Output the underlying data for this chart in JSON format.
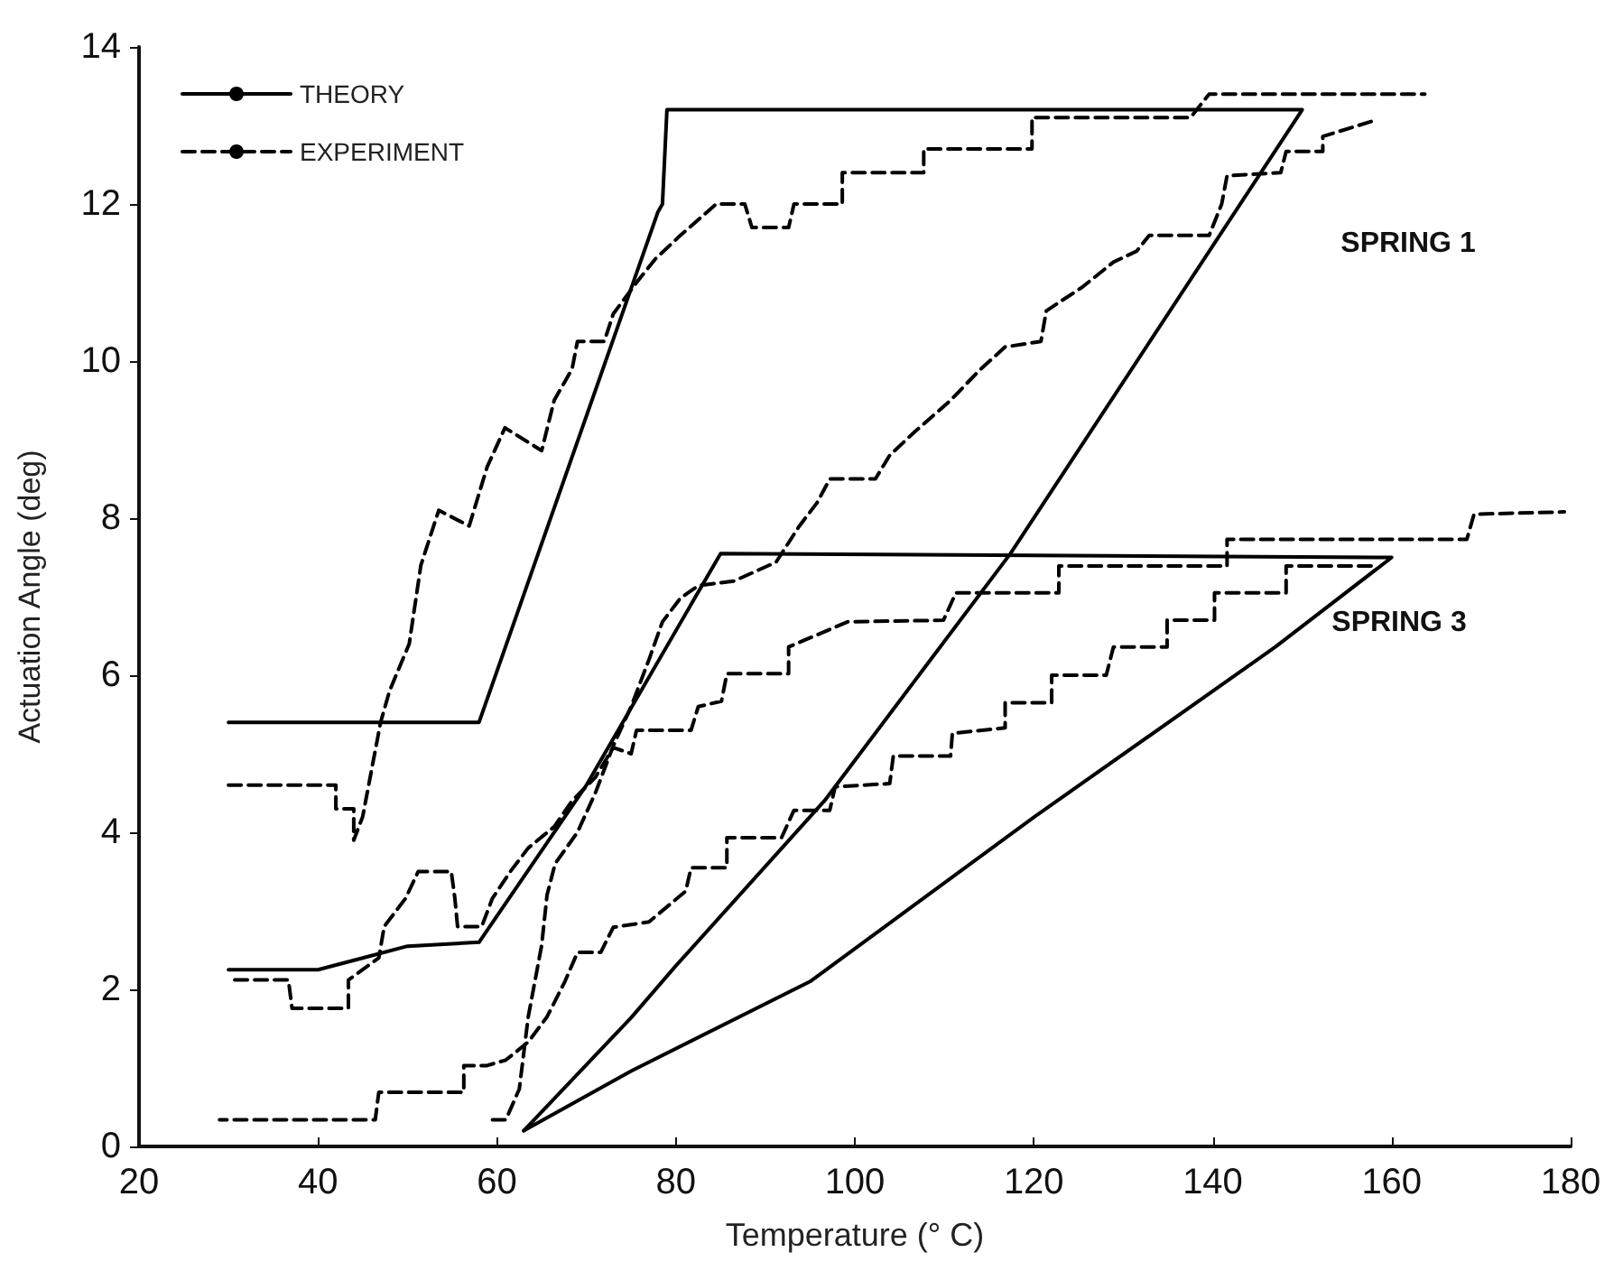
{
  "chart_data": {
    "type": "line",
    "xlabel": "Temperature (° C)",
    "ylabel": "Actuation Angle (deg)",
    "xlim": [
      20,
      180
    ],
    "xticks": [
      20,
      40,
      60,
      80,
      100,
      120,
      140,
      160,
      180
    ],
    "ylim": [
      0,
      14
    ],
    "yticks": [
      0,
      2,
      4,
      6,
      8,
      10,
      12,
      14
    ],
    "grid": false,
    "legend": "top left",
    "marker": "none",
    "annotations": [
      "SPRING 1",
      "SPRING 3"
    ],
    "series": [
      {
        "name": "THEORY",
        "color": "#000000",
        "line_style": "solid",
        "x": [
          30,
          58,
          78,
          78.5,
          79,
          150,
          117.4,
          96.6,
          80,
          75,
          63
        ],
        "values": [
          5.4,
          5.4,
          11.9,
          12.0,
          13.2,
          13.2,
          7.55,
          4.4,
          2.3,
          1.64,
          0.2
        ]
      },
      {
        "color": "#000000",
        "line_style": "solid",
        "x": [
          30,
          40,
          45,
          50,
          58,
          70,
          85,
          160,
          147,
          120,
          95,
          75,
          63
        ],
        "values": [
          2.25,
          2.25,
          2.4,
          2.55,
          2.6,
          4.6,
          7.55,
          7.5,
          6.36,
          4.19,
          2.1,
          0.96,
          0.2
        ]
      },
      {
        "name": "EXPERIMENT",
        "color": "#000000",
        "line_style": "dashed",
        "x": [
          30,
          42,
          42,
          44,
          44,
          45,
          46,
          47,
          48,
          50.2,
          51.5,
          53.5,
          56.9,
          58.9,
          60.9,
          65,
          66.4,
          68.4,
          69,
          72,
          73,
          75.6,
          77.7,
          80.5,
          83,
          84.5,
          87.7,
          88.5,
          92.6,
          93.2,
          98.6,
          98.6,
          107.7,
          107.7,
          119.8,
          119.8,
          137.5,
          139.6,
          163.7
        ],
        "values": [
          4.6,
          4.6,
          4.3,
          4.3,
          3.9,
          4.2,
          4.8,
          5.4,
          5.8,
          6.4,
          7.4,
          8.1,
          7.9,
          8.65,
          9.15,
          8.86,
          9.5,
          9.9,
          10.25,
          10.25,
          10.6,
          11.0,
          11.3,
          11.6,
          11.85,
          12.0,
          12.0,
          11.7,
          11.7,
          12.0,
          12.0,
          12.4,
          12.4,
          12.7,
          12.7,
          13.1,
          13.1,
          13.4,
          13.4
        ]
      },
      {
        "color": "#000000",
        "line_style": "dashed",
        "x": [
          157.7,
          152.3,
          152.3,
          148.2,
          147.6,
          141.6,
          141,
          139.6,
          132.9,
          131.5,
          128.9,
          125.4,
          121.4,
          120.8,
          116.8,
          113.9,
          110.7,
          106.7,
          103.9,
          102.3,
          97.2,
          95.8,
          93.8,
          91.2,
          86.5,
          82.5,
          80.5,
          78.5,
          77,
          75,
          73,
          71,
          69,
          66.5,
          65.6,
          65,
          63.5,
          62.5,
          61,
          59
        ],
        "values": [
          13.05,
          12.86,
          12.67,
          12.67,
          12.4,
          12.36,
          12.0,
          11.6,
          11.6,
          11.4,
          11.26,
          10.94,
          10.64,
          10.25,
          10.18,
          9.88,
          9.5,
          9.1,
          8.8,
          8.5,
          8.5,
          8.2,
          7.9,
          7.44,
          7.2,
          7.14,
          6.98,
          6.68,
          6.2,
          5.6,
          5.1,
          4.5,
          4.0,
          3.6,
          3.2,
          2.56,
          1.65,
          0.73,
          0.34,
          0.34
        ]
      },
      {
        "color": "#000000",
        "line_style": "dashed",
        "x": [
          30.7,
          36.7,
          37.1,
          43.4,
          43.4,
          46.8,
          47.4,
          49.8,
          51.2,
          54.9,
          55.3,
          55.6,
          58.3,
          59.5,
          61.5,
          63.5,
          66.4,
          68.4,
          71,
          73,
          75,
          75.6,
          81.7,
          82.5,
          85.1,
          85.7,
          92.6,
          92.6,
          99.2,
          109.9,
          111.3,
          122.8,
          122.8,
          141.6,
          141.6,
          168.4,
          169.2,
          179.3
        ],
        "values": [
          2.12,
          2.12,
          1.76,
          1.76,
          2.12,
          2.4,
          2.8,
          3.16,
          3.5,
          3.5,
          3.16,
          2.8,
          2.8,
          3.16,
          3.5,
          3.8,
          4.07,
          4.4,
          4.7,
          5.08,
          5.0,
          5.3,
          5.3,
          5.6,
          5.67,
          6.02,
          6.02,
          6.36,
          6.68,
          6.7,
          7.05,
          7.05,
          7.39,
          7.39,
          7.73,
          7.73,
          8.05,
          8.08
        ]
      },
      {
        "color": "#000000",
        "line_style": "dashed",
        "x": [
          157.7,
          148.2,
          148.2,
          140.2,
          140.2,
          134.9,
          134.9,
          128.9,
          128.1,
          122,
          122,
          116.8,
          116.8,
          110.9,
          110.7,
          104.3,
          103.9,
          97.8,
          97.2,
          93.2,
          91.8,
          85.7,
          85.7,
          81.7,
          81.1,
          77,
          73,
          71.6,
          69,
          67.6,
          65.6,
          63.5,
          61,
          58.9,
          56.3,
          56.3,
          46.8,
          46.4,
          29
        ],
        "values": [
          7.39,
          7.39,
          7.05,
          7.05,
          6.7,
          6.7,
          6.36,
          6.36,
          6.0,
          6.0,
          5.65,
          5.65,
          5.33,
          5.26,
          4.97,
          4.97,
          4.62,
          4.58,
          4.28,
          4.28,
          3.93,
          3.93,
          3.55,
          3.55,
          3.25,
          2.86,
          2.79,
          2.47,
          2.47,
          2.1,
          1.65,
          1.33,
          1.1,
          1.03,
          1.03,
          0.69,
          0.69,
          0.34,
          0.34
        ]
      }
    ]
  }
}
